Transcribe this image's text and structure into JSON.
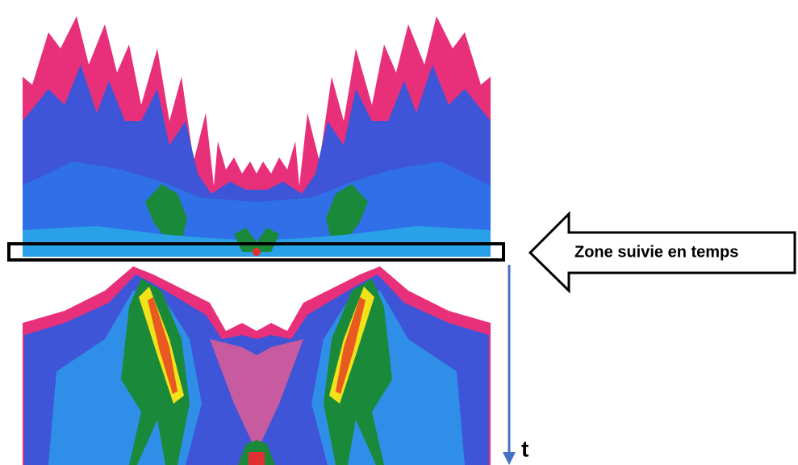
{
  "annotation": {
    "label": "Zone suivie en temps"
  },
  "axis": {
    "label": "t"
  }
}
